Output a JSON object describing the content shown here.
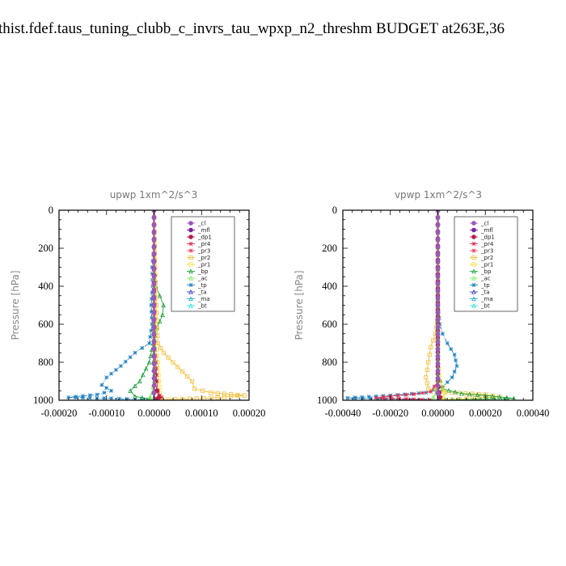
{
  "page_title": "thist.fdef.taus_tuning_clubb_c_invrs_tau_wpxp_n2_threshm  BUDGET at263E,36",
  "colors": {
    "_cl": "#9b59b6",
    "_mfl": "#7b1fa2",
    "_dp1": "#b0204a",
    "_pr4": "#e03050",
    "_pr3": "#e8405a",
    "_pr2": "#f0c040",
    "_pr1": "#f5e040",
    "_bp": "#20a040",
    "_ac": "#80ee60",
    "_tp": "#2080c0",
    "_ta": "#4040c0",
    "_ma": "#30b0d0",
    "_bt": "#30e0e0"
  },
  "chart_data": [
    {
      "type": "line",
      "title": "upwp   1xm^2/s^3",
      "ylabel": "Pressure [hPa]",
      "xlim": [
        -0.0002,
        0.0002
      ],
      "ylim": [
        1000,
        0
      ],
      "xticks": [
        "-0.00020",
        "-0.00010",
        "0.00000",
        "0.00010",
        "0.00020"
      ],
      "yticks": [
        "0",
        "200",
        "400",
        "600",
        "800",
        "1000"
      ],
      "legend": [
        "_cl",
        "_mfl",
        "_dp1",
        "_pr4",
        "_pr3",
        "_pr2",
        "_pr1",
        "_bp",
        "_ac",
        "_tp",
        "_ta",
        "_ma",
        "_bt"
      ],
      "legend_position": "top-right",
      "series": [
        {
          "name": "_tp",
          "points": [
            [
              0,
              0
            ],
            [
              0,
              200
            ],
            [
              -4e-06,
              300
            ],
            [
              -3e-06,
              400
            ],
            [
              -6e-06,
              500
            ],
            [
              -4e-06,
              600
            ],
            [
              -1e-05,
              700
            ],
            [
              -4e-05,
              750
            ],
            [
              -7e-05,
              820
            ],
            [
              -0.0001,
              880
            ],
            [
              -0.00011,
              920
            ],
            [
              -9e-05,
              950
            ],
            [
              -0.00012,
              970
            ],
            [
              -0.00018,
              985
            ],
            [
              -9e-05,
              990
            ],
            [
              -4e-05,
              995
            ],
            [
              0,
              1000
            ]
          ]
        },
        {
          "name": "_bp",
          "points": [
            [
              0,
              0
            ],
            [
              0,
              300
            ],
            [
              4e-06,
              400
            ],
            [
              1.2e-05,
              450
            ],
            [
              2e-05,
              500
            ],
            [
              1.8e-05,
              550
            ],
            [
              6e-06,
              620
            ],
            [
              -2e-06,
              700
            ],
            [
              -1e-05,
              800
            ],
            [
              -3e-05,
              900
            ],
            [
              -5e-05,
              950
            ],
            [
              -4e-05,
              980
            ],
            [
              -1e-05,
              992
            ],
            [
              0,
              1000
            ]
          ]
        },
        {
          "name": "_pr2",
          "points": [
            [
              0,
              0
            ],
            [
              2e-06,
              300
            ],
            [
              5e-06,
              500
            ],
            [
              8e-06,
              700
            ],
            [
              2e-05,
              750
            ],
            [
              4e-05,
              800
            ],
            [
              6e-05,
              850
            ],
            [
              8e-05,
              900
            ],
            [
              8.5e-05,
              940
            ],
            [
              0.00012,
              960
            ],
            [
              0.00019,
              975
            ],
            [
              0.00012,
              988
            ],
            [
              3e-05,
              996
            ],
            [
              0,
              1000
            ]
          ]
        },
        {
          "name": "_pr1",
          "points": [
            [
              0,
              0
            ],
            [
              1e-06,
              400
            ],
            [
              3e-06,
              700
            ],
            [
              8e-06,
              800
            ],
            [
              1e-05,
              900
            ],
            [
              1.2e-05,
              960
            ],
            [
              1.5e-05,
              985
            ],
            [
              0,
              1000
            ]
          ]
        },
        {
          "name": "_pr4",
          "points": [
            [
              0,
              0
            ],
            [
              0,
              700
            ],
            [
              4e-06,
              800
            ],
            [
              6e-06,
              900
            ],
            [
              8e-06,
              950
            ],
            [
              1.2e-05,
              975
            ],
            [
              1.6e-05,
              985
            ],
            [
              5e-06,
              995
            ],
            [
              0,
              1000
            ]
          ]
        },
        {
          "name": "_dp1",
          "points": [
            [
              0,
              0
            ],
            [
              0,
              800
            ],
            [
              3e-06,
              900
            ],
            [
              6e-06,
              950
            ],
            [
              1e-05,
              985
            ],
            [
              4e-06,
              995
            ],
            [
              0,
              1000
            ]
          ]
        },
        {
          "name": "_ac",
          "points": [
            [
              0,
              0
            ],
            [
              0,
              900
            ],
            [
              -4e-06,
              960
            ],
            [
              -8e-06,
              985
            ],
            [
              -2e-06,
              995
            ],
            [
              0,
              1000
            ]
          ]
        },
        {
          "name": "_mfl",
          "points": [
            [
              0,
              0
            ],
            [
              0,
              1000
            ]
          ]
        },
        {
          "name": "_cl",
          "points": [
            [
              0,
              0
            ],
            [
              0,
              1000
            ]
          ]
        }
      ]
    },
    {
      "type": "line",
      "title": "vpwp   1xm^2/s^3",
      "ylabel": "Pressure [hPa]",
      "xlim": [
        -0.0004,
        0.0004
      ],
      "ylim": [
        1000,
        0
      ],
      "xticks": [
        "-0.00040",
        "-0.00020",
        "0.00000",
        "0.00020",
        "0.00040"
      ],
      "yticks": [
        "0",
        "200",
        "400",
        "600",
        "800",
        "1000"
      ],
      "legend": [
        "_cl",
        "_mfl",
        "_dp1",
        "_pr4",
        "_pr3",
        "_pr2",
        "_pr1",
        "_bp",
        "_ac",
        "_tp",
        "_ta",
        "_ma",
        "_bt"
      ],
      "legend_position": "top-right",
      "series": [
        {
          "name": "_tp",
          "points": [
            [
              0,
              0
            ],
            [
              0,
              500
            ],
            [
              8e-06,
              600
            ],
            [
              2e-05,
              650
            ],
            [
              4e-05,
              700
            ],
            [
              7e-05,
              760
            ],
            [
              8e-05,
              820
            ],
            [
              6e-05,
              880
            ],
            [
              2e-05,
              930
            ],
            [
              -5e-05,
              960
            ],
            [
              -0.0002,
              975
            ],
            [
              -0.00038,
              988
            ],
            [
              -0.00022,
              994
            ],
            [
              -8e-05,
              998
            ],
            [
              0,
              1000
            ]
          ]
        },
        {
          "name": "_pr2",
          "points": [
            [
              0,
              0
            ],
            [
              0,
              550
            ],
            [
              -1e-05,
              650
            ],
            [
              -3e-05,
              720
            ],
            [
              -4e-05,
              800
            ],
            [
              -5e-05,
              880
            ],
            [
              -4e-05,
              940
            ],
            [
              6e-05,
              960
            ],
            [
              0.0002,
              970
            ],
            [
              0.00026,
              982
            ],
            [
              0.00012,
              992
            ],
            [
              0,
              1000
            ]
          ]
        },
        {
          "name": "_bp",
          "points": [
            [
              0,
              0
            ],
            [
              0,
              850
            ],
            [
              2e-05,
              940
            ],
            [
              0.0001,
              965
            ],
            [
              0.0002,
              975
            ],
            [
              0.00032,
              990
            ],
            [
              0.00015,
              996
            ],
            [
              0,
              1000
            ]
          ]
        },
        {
          "name": "_pr4",
          "points": [
            [
              0,
              0
            ],
            [
              0,
              900
            ],
            [
              -3e-05,
              955
            ],
            [
              -0.0001,
              968
            ],
            [
              -0.0002,
              978
            ],
            [
              -0.00026,
              988
            ],
            [
              -0.0001,
              995
            ],
            [
              0,
              1000
            ]
          ]
        },
        {
          "name": "_pr1",
          "points": [
            [
              0,
              0
            ],
            [
              0,
              800
            ],
            [
              1e-05,
              900
            ],
            [
              3e-05,
              960
            ],
            [
              2e-05,
              985
            ],
            [
              0,
              1000
            ]
          ]
        },
        {
          "name": "_dp1",
          "points": [
            [
              0,
              0
            ],
            [
              0,
              900
            ],
            [
              6e-06,
              960
            ],
            [
              1e-05,
              985
            ],
            [
              0,
              1000
            ]
          ]
        },
        {
          "name": "_ac",
          "points": [
            [
              0,
              0
            ],
            [
              0,
              900
            ],
            [
              -8e-06,
              965
            ],
            [
              -2e-05,
              985
            ],
            [
              0,
              1000
            ]
          ]
        },
        {
          "name": "_mfl",
          "points": [
            [
              0,
              0
            ],
            [
              0,
              1000
            ]
          ]
        },
        {
          "name": "_cl",
          "points": [
            [
              0,
              0
            ],
            [
              0,
              1000
            ]
          ]
        }
      ]
    }
  ]
}
